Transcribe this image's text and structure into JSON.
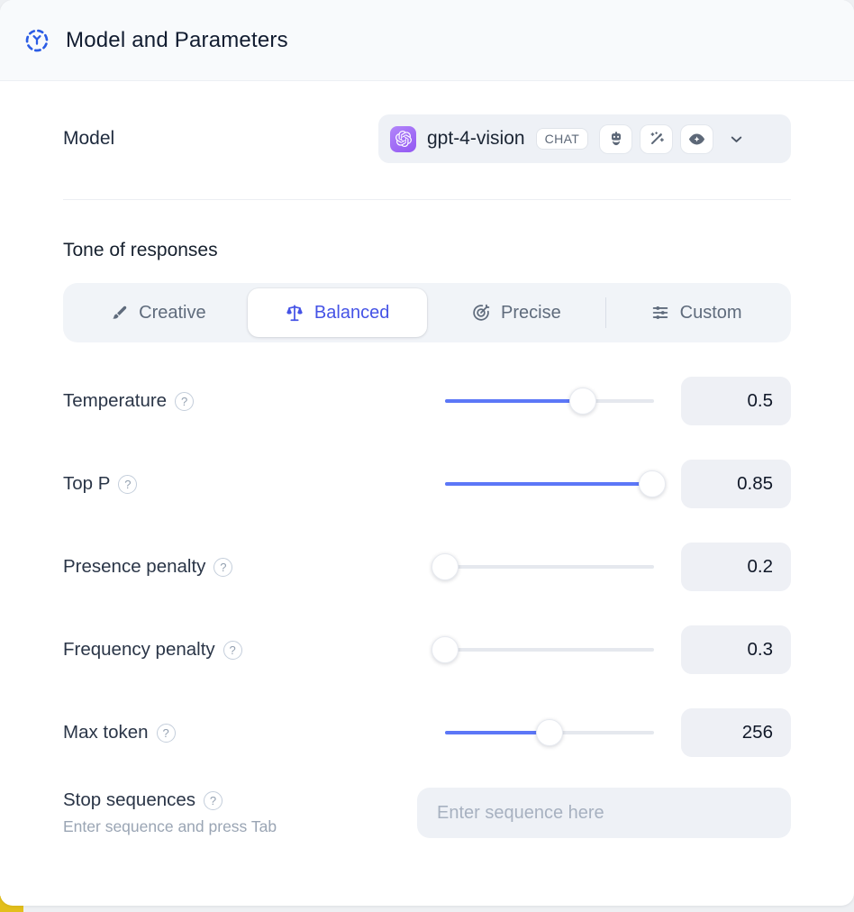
{
  "header": {
    "title": "Model and Parameters",
    "icon": "model-node-icon"
  },
  "model": {
    "label": "Model",
    "selected_value": "gpt-4-vision",
    "provider_icon": "openai-logo-icon",
    "type_badge": "CHAT",
    "capability_icons": [
      "robot-icon",
      "magic-wand-icon",
      "vision-eye-icon"
    ],
    "chevron_icon": "chevron-down-icon"
  },
  "tone": {
    "label": "Tone of responses",
    "options": [
      {
        "label": "Creative",
        "icon": "paintbrush-icon",
        "selected": false,
        "divider_before": false
      },
      {
        "label": "Balanced",
        "icon": "balance-scale-icon",
        "selected": true,
        "divider_before": false
      },
      {
        "label": "Precise",
        "icon": "target-arrow-icon",
        "selected": false,
        "divider_before": false
      },
      {
        "label": "Custom",
        "icon": "sliders-icon",
        "selected": false,
        "divider_before": true
      }
    ],
    "active_color": "#4553e6"
  },
  "parameters": [
    {
      "label": "Temperature",
      "help_icon": "help-circle-icon",
      "value": "0.5",
      "fill_pct": 66
    },
    {
      "label": "Top P",
      "help_icon": "help-circle-icon",
      "value": "0.85",
      "fill_pct": 99
    },
    {
      "label": "Presence penalty",
      "help_icon": "help-circle-icon",
      "value": "0.2",
      "fill_pct": 0
    },
    {
      "label": "Frequency penalty",
      "help_icon": "help-circle-icon",
      "value": "0.3",
      "fill_pct": 0
    },
    {
      "label": "Max token",
      "help_icon": "help-circle-icon",
      "value": "256",
      "fill_pct": 50
    }
  ],
  "stop_sequences": {
    "label": "Stop sequences",
    "help_icon": "help-circle-icon",
    "hint": "Enter sequence and press Tab",
    "placeholder": "Enter sequence here"
  },
  "colors": {
    "slider_fill": "#5c77f7",
    "active_tab_text": "#4553e6",
    "header_icon_blue": "#2b5ce5",
    "provider_badge_purple": "#9d6bf7",
    "corner_accent_yellow": "#e3bf1b"
  }
}
